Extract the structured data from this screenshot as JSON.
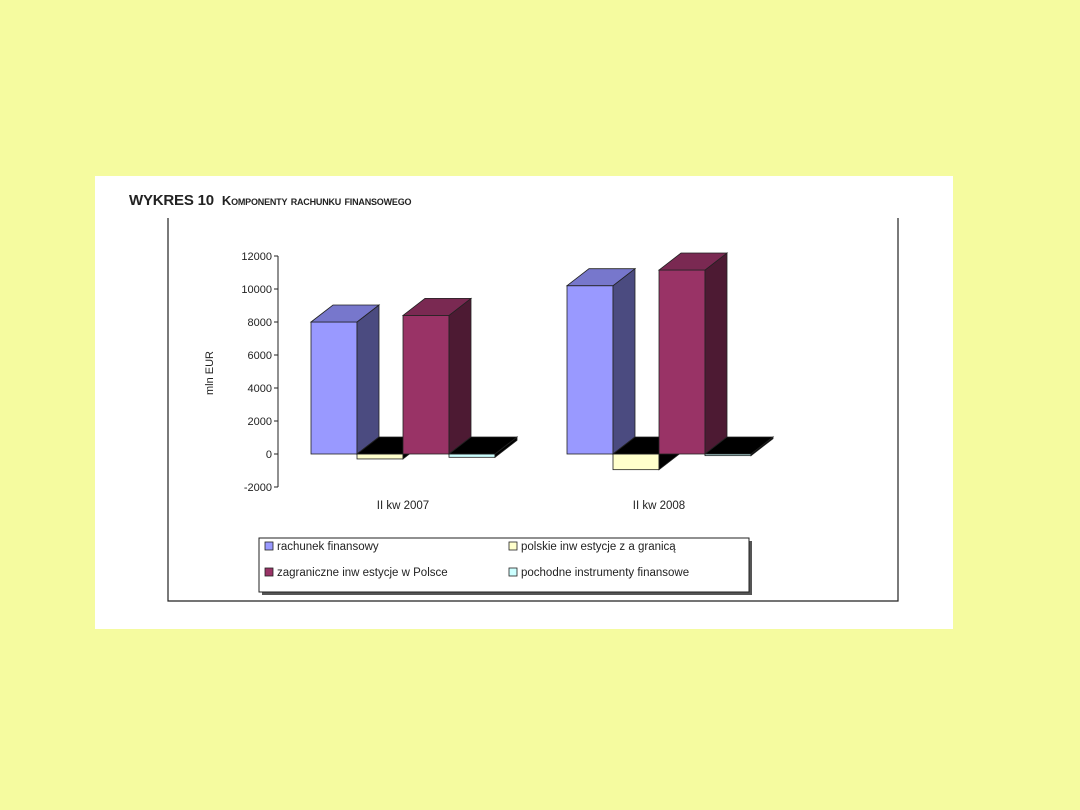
{
  "title": {
    "prefix": "WYKRES 10",
    "text": "Komponenty rachunku finansowego"
  },
  "chart_data": {
    "type": "bar",
    "style": "3d-clustered-column",
    "categories": [
      "II kw 2007",
      "II kw 2008"
    ],
    "ylabel": "mln EUR",
    "xlabel": "",
    "ylim": [
      -2000,
      12000
    ],
    "yticks": [
      12000,
      10000,
      8000,
      6000,
      4000,
      2000,
      0,
      -2000
    ],
    "grid": false,
    "legend_position": "bottom",
    "series": [
      {
        "name": "rachunek finansowy",
        "values": [
          8000,
          10200
        ],
        "color": "#9999ff",
        "side_color": "#4b4b80",
        "top_color": "#7777cc"
      },
      {
        "name": "polskie inw estycje z a granicą",
        "values": [
          -300,
          -950
        ],
        "color": "#ffffcc",
        "side_color": "#9a9a6a",
        "top_color": "#ddddaa"
      },
      {
        "name": "zagraniczne inw estycje w  Polsce",
        "values": [
          8400,
          11150
        ],
        "color": "#993366",
        "side_color": "#4d1a33",
        "top_color": "#7a2952"
      },
      {
        "name": "pochodne instrumenty finansowe",
        "values": [
          -200,
          -100
        ],
        "color": "#ccffff",
        "side_color": "#6a8a8a",
        "top_color": "#aadddd"
      }
    ],
    "floor_color": "#000000"
  }
}
